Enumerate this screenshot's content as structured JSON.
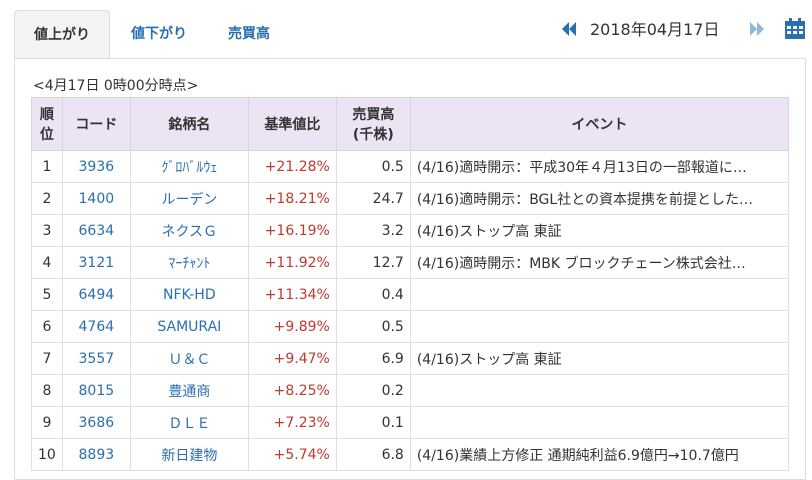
{
  "tabs": [
    {
      "label": "値上がり",
      "active": true
    },
    {
      "label": "値下がり",
      "active": false
    },
    {
      "label": "売買高",
      "active": false
    }
  ],
  "date_nav": {
    "date": "2018年04月17日",
    "prev_icon": "double-chevron-left-icon",
    "next_icon": "double-chevron-right-icon",
    "calendar_icon": "calendar-icon"
  },
  "as_of": "<4月17日 0時00分時点>",
  "table": {
    "headers": {
      "rank_line1": "順",
      "rank_line2": "位",
      "code": "コード",
      "name": "銘柄名",
      "pct": "基準値比",
      "vol_line1": "売買高",
      "vol_line2": "(千株)",
      "event": "イベント"
    },
    "rows": [
      {
        "rank": "1",
        "code": "3936",
        "name": "ｸﾞﾛﾊﾞﾙｳｪ",
        "pct": "+21.28%",
        "vol": "0.5",
        "event": "(4/16)適時開示：平成30年４月13日の一部報道に…"
      },
      {
        "rank": "2",
        "code": "1400",
        "name": "ルーデン",
        "pct": "+18.21%",
        "vol": "24.7",
        "event": "(4/16)適時開示：BGL社との資本提携を前提とした…"
      },
      {
        "rank": "3",
        "code": "6634",
        "name": "ネクスＧ",
        "pct": "+16.19%",
        "vol": "3.2",
        "event": "(4/16)ストップ高 東証"
      },
      {
        "rank": "4",
        "code": "3121",
        "name": "ﾏｰﾁｬﾝﾄ",
        "pct": "+11.92%",
        "vol": "12.7",
        "event": "(4/16)適時開示：MBK ブロックチェーン株式会社…"
      },
      {
        "rank": "5",
        "code": "6494",
        "name": "NFK-HD",
        "pct": "+11.34%",
        "vol": "0.4",
        "event": ""
      },
      {
        "rank": "6",
        "code": "4764",
        "name": "SAMURAI",
        "pct": "+9.89%",
        "vol": "0.5",
        "event": ""
      },
      {
        "rank": "7",
        "code": "3557",
        "name": "Ｕ＆Ｃ",
        "pct": "+9.47%",
        "vol": "6.9",
        "event": "(4/16)ストップ高 東証"
      },
      {
        "rank": "8",
        "code": "8015",
        "name": "豊通商",
        "pct": "+8.25%",
        "vol": "0.2",
        "event": ""
      },
      {
        "rank": "9",
        "code": "3686",
        "name": "ＤＬＥ",
        "pct": "+7.23%",
        "vol": "0.1",
        "event": ""
      },
      {
        "rank": "10",
        "code": "8893",
        "name": "新日建物",
        "pct": "+5.74%",
        "vol": "6.8",
        "event": "(4/16)業績上方修正 通期純利益6.9億円→10.7億円"
      }
    ]
  }
}
